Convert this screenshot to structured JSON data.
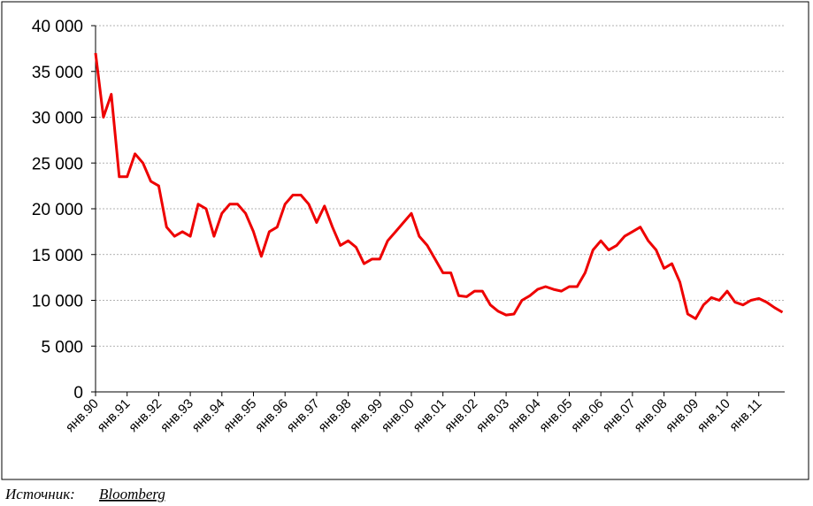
{
  "chart_data": {
    "type": "line",
    "categories": [
      "янв.90",
      null,
      null,
      null,
      "янв.91",
      null,
      null,
      null,
      "янв.92",
      null,
      null,
      null,
      "янв.93",
      null,
      null,
      null,
      "янв.94",
      null,
      null,
      null,
      "янв.95",
      null,
      null,
      null,
      "янв.96",
      null,
      null,
      null,
      "янв.97",
      null,
      null,
      null,
      "янв.98",
      null,
      null,
      null,
      "янв.99",
      null,
      null,
      null,
      "янв.00",
      null,
      null,
      null,
      "янв.01",
      null,
      null,
      null,
      "янв.02",
      null,
      null,
      null,
      "янв.03",
      null,
      null,
      null,
      "янв.04",
      null,
      null,
      null,
      "янв.05",
      null,
      null,
      null,
      "янв.06",
      null,
      null,
      null,
      "янв.07",
      null,
      null,
      null,
      "янв.08",
      null,
      null,
      null,
      "янв.09",
      null,
      null,
      null,
      "янв.10",
      null,
      null,
      null,
      "янв.11",
      null,
      null,
      null
    ],
    "values": [
      37000,
      30000,
      32500,
      23500,
      23500,
      26000,
      25000,
      23000,
      22500,
      18000,
      17000,
      17500,
      17000,
      20500,
      20000,
      17000,
      19500,
      20500,
      20500,
      19500,
      17500,
      14800,
      17500,
      18000,
      20500,
      21500,
      21500,
      20500,
      18500,
      20300,
      18000,
      16000,
      16500,
      15800,
      14000,
      14500,
      14500,
      16500,
      17500,
      18500,
      19500,
      17000,
      16000,
      14500,
      13000,
      13000,
      10500,
      10400,
      11000,
      11000,
      9500,
      8800,
      8400,
      8500,
      10000,
      10500,
      11200,
      11500,
      11200,
      11000,
      11500,
      11500,
      13000,
      15500,
      16500,
      15500,
      16000,
      17000,
      17500,
      18000,
      16500,
      15500,
      13500,
      14000,
      12000,
      8500,
      8000,
      9500,
      10300,
      10000,
      11000,
      9800,
      9500,
      10000,
      10200,
      9800,
      9200,
      8700
    ],
    "color": "#ee0000",
    "ylim": [
      0,
      40000
    ],
    "yticks": [
      0,
      {
        "value": 5000,
        "label": "5 000"
      },
      {
        "value": 10000,
        "label": "10 000"
      },
      {
        "value": 15000,
        "label": "15 000"
      },
      {
        "value": 20000,
        "label": "20 000"
      },
      {
        "value": 25000,
        "label": "25 000"
      },
      {
        "value": 30000,
        "label": "30 000"
      },
      {
        "value": 35000,
        "label": "35 000"
      },
      {
        "value": 40000,
        "label": "40 000"
      }
    ],
    "grid": true
  },
  "footer": {
    "label": "Источник:",
    "source": "Bloomberg"
  }
}
